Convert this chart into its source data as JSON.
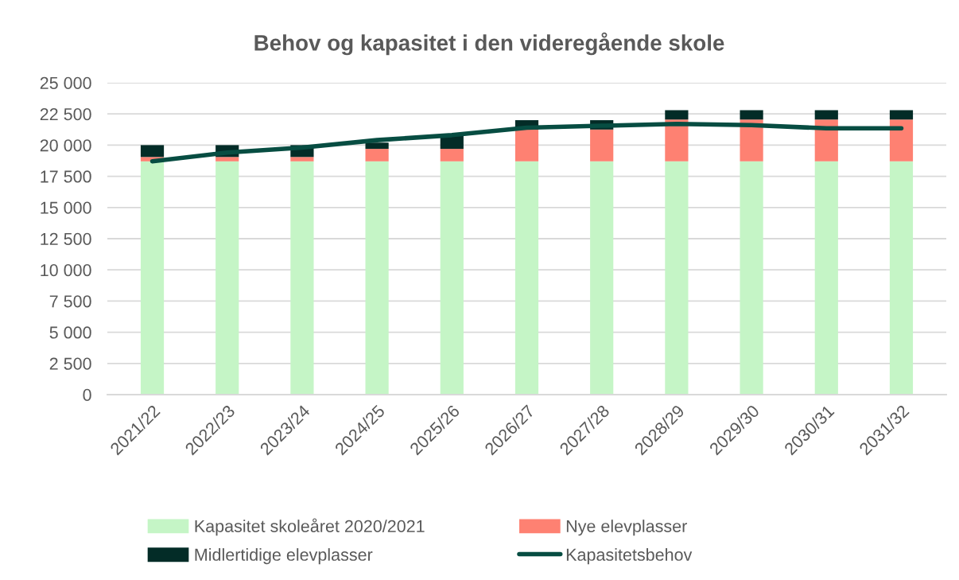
{
  "chart_data": {
    "type": "bar",
    "title": "Behov og kapasitet i den videregående skole",
    "categories": [
      "2021/22",
      "2022/23",
      "2023/24",
      "2024/25",
      "2025/26",
      "2026/27",
      "2027/28",
      "2028/29",
      "2029/30",
      "2030/31",
      "2031/32"
    ],
    "stacked": true,
    "series": [
      {
        "name": "Kapasitet skoleåret 2020/2021",
        "color": "#c5f5c6",
        "values": [
          18700,
          18700,
          18700,
          18700,
          18700,
          18700,
          18700,
          18700,
          18700,
          18700,
          18700
        ]
      },
      {
        "name": "Nye elevplasser",
        "color": "#fe8172",
        "values": [
          350,
          350,
          350,
          1000,
          1000,
          2550,
          2550,
          3350,
          3350,
          3350,
          3350
        ]
      },
      {
        "name": "Midlertidige elevplasser",
        "color": "#032c27",
        "values": [
          950,
          950,
          950,
          500,
          1050,
          750,
          750,
          750,
          750,
          750,
          750
        ]
      },
      {
        "name": "Kapasitetsbehov",
        "type": "line",
        "color": "#074d42",
        "values": [
          18700,
          19400,
          19800,
          20400,
          20800,
          21400,
          21550,
          21700,
          21600,
          21350,
          21350
        ]
      }
    ],
    "ylim": [
      0,
      25000
    ],
    "yticks": [
      {
        "value": 0,
        "label": "0"
      },
      {
        "value": 2500,
        "label": "2 500"
      },
      {
        "value": 5000,
        "label": "5 000"
      },
      {
        "value": 7500,
        "label": "7 500"
      },
      {
        "value": 10000,
        "label": "10 000"
      },
      {
        "value": 12500,
        "label": "12 500"
      },
      {
        "value": 15000,
        "label": "15 000"
      },
      {
        "value": 17500,
        "label": "17 500"
      },
      {
        "value": 20000,
        "label": "20 000"
      },
      {
        "value": 22500,
        "label": "22 500"
      },
      {
        "value": 25000,
        "label": "25 000"
      }
    ],
    "grid": "y",
    "legend": "bottom"
  }
}
